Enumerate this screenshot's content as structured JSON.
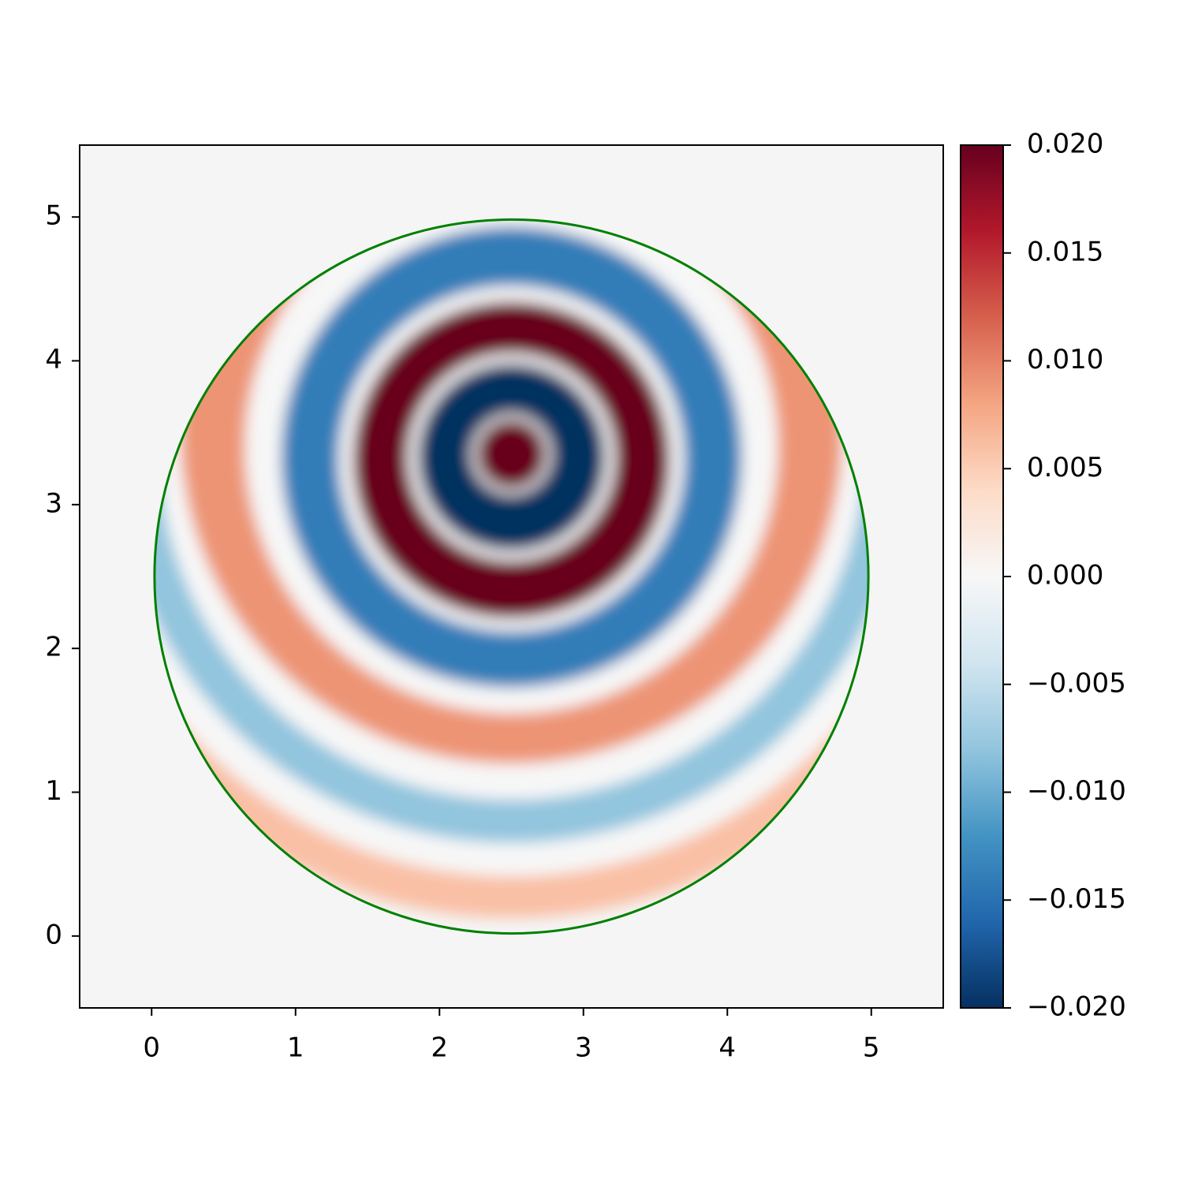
{
  "chart_data": {
    "type": "field",
    "xlim": [
      -0.5,
      5.5
    ],
    "ylim": [
      -0.5,
      5.5
    ],
    "xticks": [
      0,
      1,
      2,
      3,
      4,
      5
    ],
    "yticks": [
      0,
      1,
      2,
      3,
      4,
      5
    ],
    "colormap": "RdBu",
    "background": "#f5f5f5",
    "clim": [
      -0.02,
      0.02
    ],
    "cticks": [
      {
        "value": -0.02,
        "label": "−0.020"
      },
      {
        "value": -0.015,
        "label": "−0.015"
      },
      {
        "value": -0.01,
        "label": "−0.010"
      },
      {
        "value": -0.005,
        "label": "−0.005"
      },
      {
        "value": 0,
        "label": "0.000"
      },
      {
        "value": 0.005,
        "label": "0.005"
      },
      {
        "value": 0.01,
        "label": "0.010"
      },
      {
        "value": 0.015,
        "label": "0.015"
      },
      {
        "value": 0.02,
        "label": "0.020"
      }
    ],
    "boundary": {
      "cx": 2.5,
      "cy": 2.5,
      "r": 2.48,
      "color": "#008000"
    },
    "bands": [
      {
        "cx": 2.5,
        "cy": 3.42,
        "r": 3.29,
        "value": 0.006
      },
      {
        "cx": 2.5,
        "cy": 3.42,
        "r": 3.0,
        "value": 0
      },
      {
        "cx": 2.5,
        "cy": 3.4,
        "r": 2.75,
        "value": -0.008
      },
      {
        "cx": 2.5,
        "cy": 3.4,
        "r": 2.45,
        "value": 0
      },
      {
        "cx": 2.5,
        "cy": 3.5,
        "r": 2.3,
        "value": 0.009
      },
      {
        "cx": 2.5,
        "cy": 3.4,
        "r": 1.85,
        "value": 0
      },
      {
        "cx": 2.5,
        "cy": 3.33,
        "r": 1.6,
        "value": -0.014
      },
      {
        "cx": 2.5,
        "cy": 3.32,
        "r": 1.2,
        "value": 0
      },
      {
        "cx": 2.5,
        "cy": 3.31,
        "r": 1.1,
        "value": 0.02
      },
      {
        "cx": 2.5,
        "cy": 3.33,
        "r": 0.72,
        "value": 0
      },
      {
        "cx": 2.5,
        "cy": 3.33,
        "r": 0.65,
        "value": -0.02
      },
      {
        "cx": 2.5,
        "cy": 3.35,
        "r": 0.28,
        "value": 0
      },
      {
        "cx": 2.5,
        "cy": 3.35,
        "r": 0.24,
        "value": 0.02
      }
    ]
  }
}
